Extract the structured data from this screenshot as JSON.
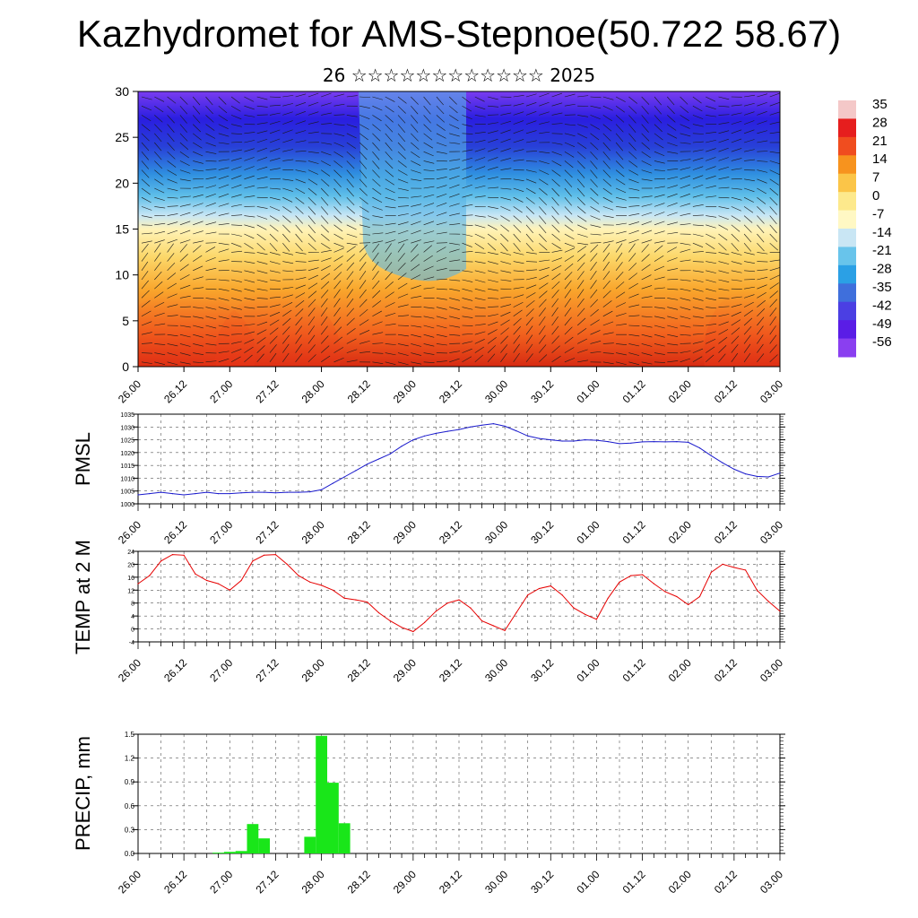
{
  "header": {
    "title": "Kazhydromet for AMS-Stepnoe(50.722 58.67)",
    "subtitle": "26 ☆☆☆☆☆☆☆☆☆☆☆☆ 2025"
  },
  "chart_data": [
    {
      "type": "heatmap",
      "name": "temperature-wind-cross-section",
      "ylim": [
        0,
        30
      ],
      "yticks": [
        0,
        5,
        10,
        15,
        20,
        25,
        30
      ],
      "xtick_labels": [
        "26.00",
        "26.12",
        "27.00",
        "27.12",
        "28.00",
        "28.12",
        "29.00",
        "29.12",
        "30.00",
        "30.12",
        "01.00",
        "01.12",
        "02.00",
        "02.12",
        "03.00"
      ],
      "colorbar": {
        "labels": [
          "35",
          "28",
          "21",
          "14",
          "7",
          "0",
          "-7",
          "-14",
          "-21",
          "-28",
          "-35",
          "-42",
          "-49",
          "-56"
        ],
        "colors": [
          "#f4c8c8",
          "#e61e1e",
          "#f04d1f",
          "#f7931e",
          "#fbc548",
          "#fde98c",
          "#fff8c4",
          "#c9e6f4",
          "#68c4eb",
          "#2ba0e5",
          "#3f6fdc",
          "#4b3fe3",
          "#5a1de6",
          "#8a3ff0"
        ]
      },
      "grid": false
    },
    {
      "type": "line",
      "ylabel": "PMSL",
      "ylim": [
        1000,
        1035
      ],
      "yticks": [
        1000,
        1005,
        1010,
        1015,
        1020,
        1025,
        1030,
        1035
      ],
      "color": "#1a1acc",
      "xtick_labels": [
        "26.00",
        "26.12",
        "27.00",
        "27.12",
        "28.00",
        "28.12",
        "29.00",
        "29.12",
        "30.00",
        "30.12",
        "01.00",
        "01.12",
        "02.00",
        "02.12",
        "03.00"
      ],
      "x": [
        0,
        3,
        6,
        9,
        12,
        15,
        18,
        21,
        24,
        27,
        30,
        33,
        36,
        39,
        42,
        45,
        48,
        51,
        54,
        57,
        60,
        63,
        66,
        69,
        72,
        75,
        78,
        81,
        84,
        87,
        90,
        93,
        96,
        99,
        102,
        105,
        108,
        111,
        114,
        117,
        120,
        123,
        126,
        129,
        132,
        135,
        138,
        141,
        144,
        147,
        150,
        153,
        156,
        159,
        162,
        165,
        168
      ],
      "values": [
        1003.5,
        1004,
        1004.5,
        1004,
        1003.5,
        1004,
        1004.5,
        1004,
        1004,
        1004.3,
        1004.5,
        1004.5,
        1004.3,
        1004.5,
        1004.5,
        1004.7,
        1005.5,
        1008,
        1010.5,
        1013,
        1015.5,
        1017.5,
        1019.5,
        1022.5,
        1025,
        1026.5,
        1027.5,
        1028.3,
        1029,
        1030,
        1030.7,
        1031.3,
        1030.3,
        1028.5,
        1026.5,
        1025.5,
        1025,
        1024.5,
        1024.5,
        1025,
        1024.8,
        1024.3,
        1023.5,
        1023.7,
        1024.2,
        1024.3,
        1024.2,
        1024.3,
        1024,
        1021.8,
        1018.8,
        1016,
        1013.5,
        1011.7,
        1010.7,
        1010.5,
        1012
      ]
    },
    {
      "type": "line",
      "ylabel": "TEMP at 2 M",
      "ylim": [
        -4,
        24
      ],
      "yticks": [
        -4,
        0,
        4,
        8,
        12,
        16,
        20,
        24
      ],
      "color": "#e60000",
      "xtick_labels": [
        "26.00",
        "26.12",
        "27.00",
        "27.12",
        "28.00",
        "28.12",
        "29.00",
        "29.12",
        "30.00",
        "30.12",
        "01.00",
        "01.12",
        "02.00",
        "02.12",
        "03.00"
      ],
      "x": [
        0,
        3,
        6,
        9,
        12,
        15,
        18,
        21,
        24,
        27,
        30,
        33,
        36,
        39,
        42,
        45,
        48,
        51,
        54,
        57,
        60,
        63,
        66,
        69,
        72,
        75,
        78,
        81,
        84,
        87,
        90,
        93,
        96,
        99,
        102,
        105,
        108,
        111,
        114,
        117,
        120,
        123,
        126,
        129,
        132,
        135,
        138,
        141,
        144,
        147,
        150,
        153,
        156,
        159,
        162,
        165,
        168
      ],
      "values": [
        14,
        16.5,
        21,
        23,
        22.8,
        17,
        15,
        14,
        12,
        15,
        21,
        22.8,
        23,
        20,
        16.5,
        14.5,
        13.5,
        12,
        9.5,
        9,
        8.3,
        5,
        2.5,
        0.5,
        -0.8,
        2,
        5.5,
        8,
        9,
        6.5,
        2.5,
        1,
        -0.5,
        5,
        10.5,
        12.5,
        13.3,
        10.5,
        6.5,
        4.5,
        3,
        9.5,
        14.5,
        16.5,
        16.8,
        14,
        11.5,
        10,
        7.5,
        10,
        17.5,
        20,
        19,
        18.2,
        12,
        8.5,
        5.5
      ]
    },
    {
      "type": "bar",
      "ylabel": "PRECIP, mm",
      "ylim": [
        0,
        1.5
      ],
      "yticks": [
        "0.0",
        "0.3",
        "0.6",
        "0.9",
        "1.2",
        "1.5"
      ],
      "color": "#19e619",
      "xtick_labels": [
        "26.00",
        "26.12",
        "27.00",
        "27.12",
        "28.00",
        "28.12",
        "29.00",
        "29.12",
        "30.00",
        "30.12",
        "01.00",
        "01.12",
        "02.00",
        "02.12",
        "03.00"
      ],
      "x": [
        21,
        24,
        27,
        30,
        33,
        36,
        45,
        48,
        51,
        54
      ],
      "values": [
        0.01,
        0.02,
        0.03,
        0.37,
        0.19,
        0.0,
        0.21,
        1.48,
        0.89,
        0.38
      ]
    }
  ]
}
